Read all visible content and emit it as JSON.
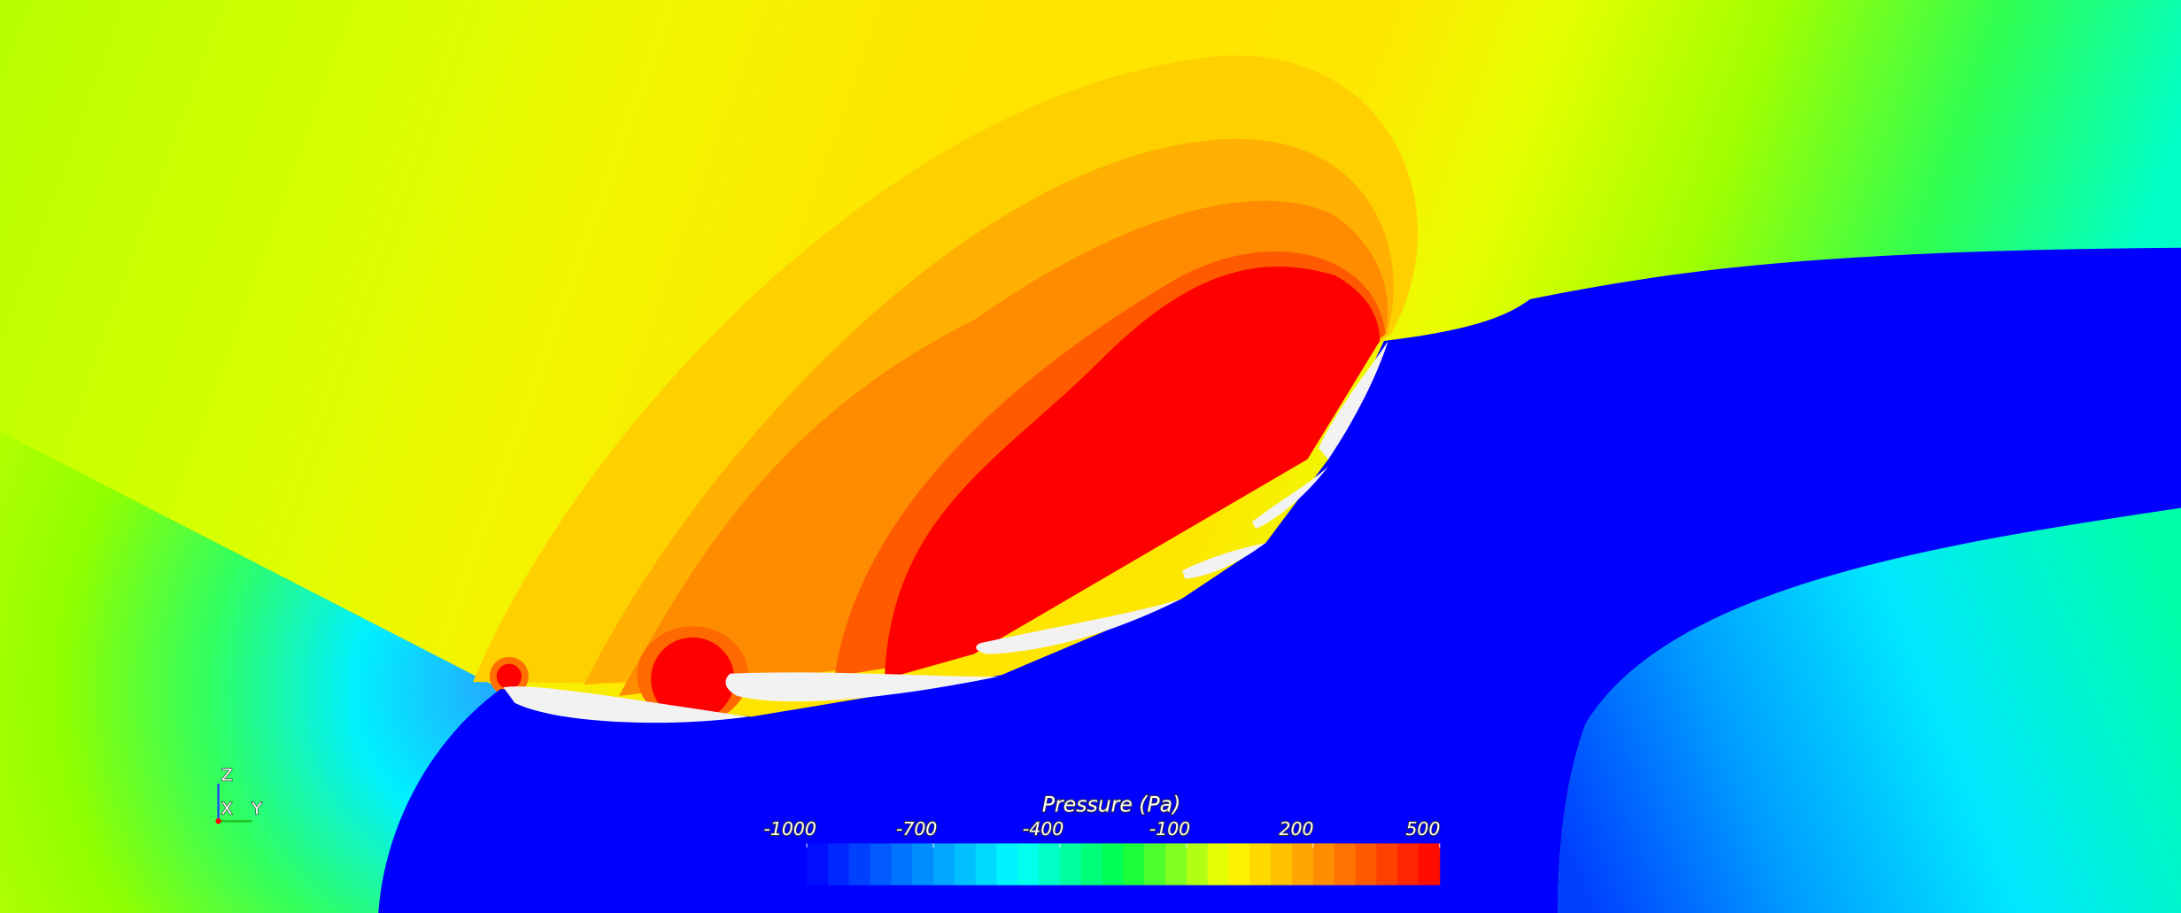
{
  "colorbar": {
    "title": "Pressure (Pa)",
    "range": [
      -1000,
      500
    ],
    "ticks": [
      -1000,
      -700,
      -400,
      -100,
      200,
      500
    ],
    "levels": 30,
    "colormap": [
      "#0000ff",
      "#0080ff",
      "#00ffff",
      "#00ff40",
      "#ffff00",
      "#ff8000",
      "#ff0000"
    ]
  },
  "axes_triad": {
    "z": "Z",
    "x": "X",
    "y": "Y"
  }
}
